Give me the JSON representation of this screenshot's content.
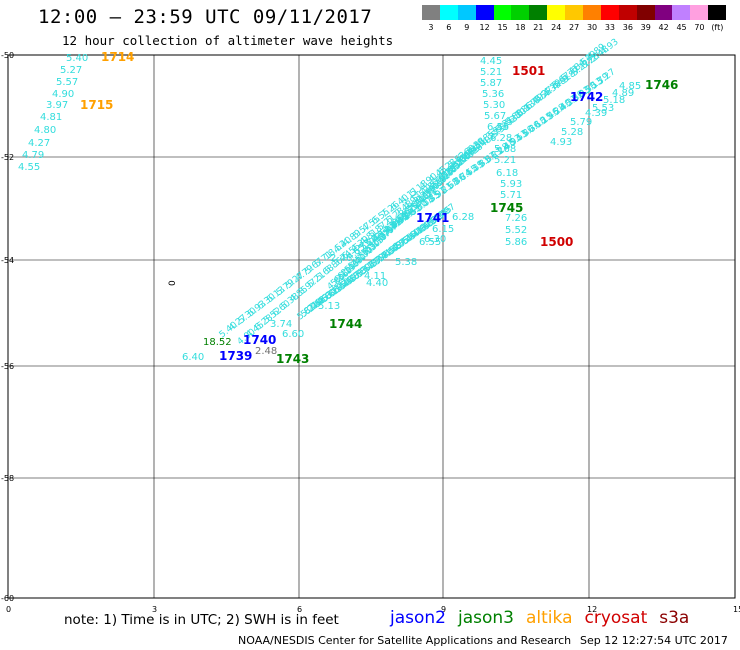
{
  "header": {
    "title": "12:00 – 23:59 UTC 09/11/2017",
    "subtitle": "12 hour collection of altimeter wave heights"
  },
  "color_scale": {
    "colors": [
      "#808080",
      "#00ffff",
      "#00c8ff",
      "#0000ff",
      "#00ff00",
      "#00d000",
      "#008000",
      "#ffff00",
      "#ffc800",
      "#ff8000",
      "#ff0000",
      "#c00000",
      "#800000",
      "#800080",
      "#c080ff",
      "#ffa0e0",
      "#000000"
    ],
    "labels": [
      "3",
      "6",
      "9",
      "12",
      "15",
      "18",
      "21",
      "24",
      "27",
      "30",
      "33",
      "36",
      "39",
      "42",
      "45",
      "70",
      "(ft)"
    ]
  },
  "axes": {
    "lat_labels": [
      "-50",
      "-52",
      "-54",
      "-56",
      "-58",
      "-60"
    ],
    "lon_labels": [
      "0",
      "3",
      "6",
      "9",
      "12",
      "15"
    ]
  },
  "stray_label": "0",
  "swh_labels": [
    "5.40",
    "5.27",
    "5.57",
    "4.90",
    "3.97",
    "4.81",
    "4.80",
    "4.27",
    "4.79",
    "4.55",
    "4.45",
    "5.21",
    "5.87",
    "5.36",
    "5.30",
    "5.67",
    "6.55",
    "6.28",
    "5.68",
    "5.21",
    "6.18",
    "5.93",
    "5.71",
    "7.26",
    "5.52",
    "5.86",
    "6.28",
    "6.15",
    "6.30",
    "18.52",
    "6.40",
    "6.60",
    "3.74",
    "2.48",
    "2.46",
    "5.13",
    "4.40",
    "4.11",
    "5.38",
    "6.55",
    "4.93",
    "5.28",
    "5.79",
    "4.89",
    "5.18",
    "4.85",
    "4.39",
    "5.53"
  ],
  "pass_labels": [
    {
      "text": "1714",
      "mission": "altika"
    },
    {
      "text": "1715",
      "mission": "altika"
    },
    {
      "text": "1501",
      "mission": "cryosat"
    },
    {
      "text": "1500",
      "mission": "cryosat"
    },
    {
      "text": "1742",
      "mission": "jason2"
    },
    {
      "text": "1746",
      "mission": "jason3"
    },
    {
      "text": "1745",
      "mission": "jason3"
    },
    {
      "text": "1741",
      "mission": "jason2"
    },
    {
      "text": "1744",
      "mission": "jason3"
    },
    {
      "text": "1740",
      "mission": "jason2"
    },
    {
      "text": "1739",
      "mission": "jason2"
    },
    {
      "text": "1743",
      "mission": "jason3"
    }
  ],
  "footer": {
    "note": "note:  1) Time is in UTC;  2) SWH is in feet",
    "legend": [
      {
        "name": "jason2",
        "color": "#0000ff"
      },
      {
        "name": "jason3",
        "color": "#008000"
      },
      {
        "name": "altika",
        "color": "#ffa000"
      },
      {
        "name": "cryosat",
        "color": "#d00000"
      },
      {
        "name": "s3a",
        "color": "#8b0000"
      }
    ],
    "credit": "NOAA/NESDIS Center for Satellite Applications and Research",
    "timestamp": "Sep 12 12:27:54 UTC 2017"
  }
}
